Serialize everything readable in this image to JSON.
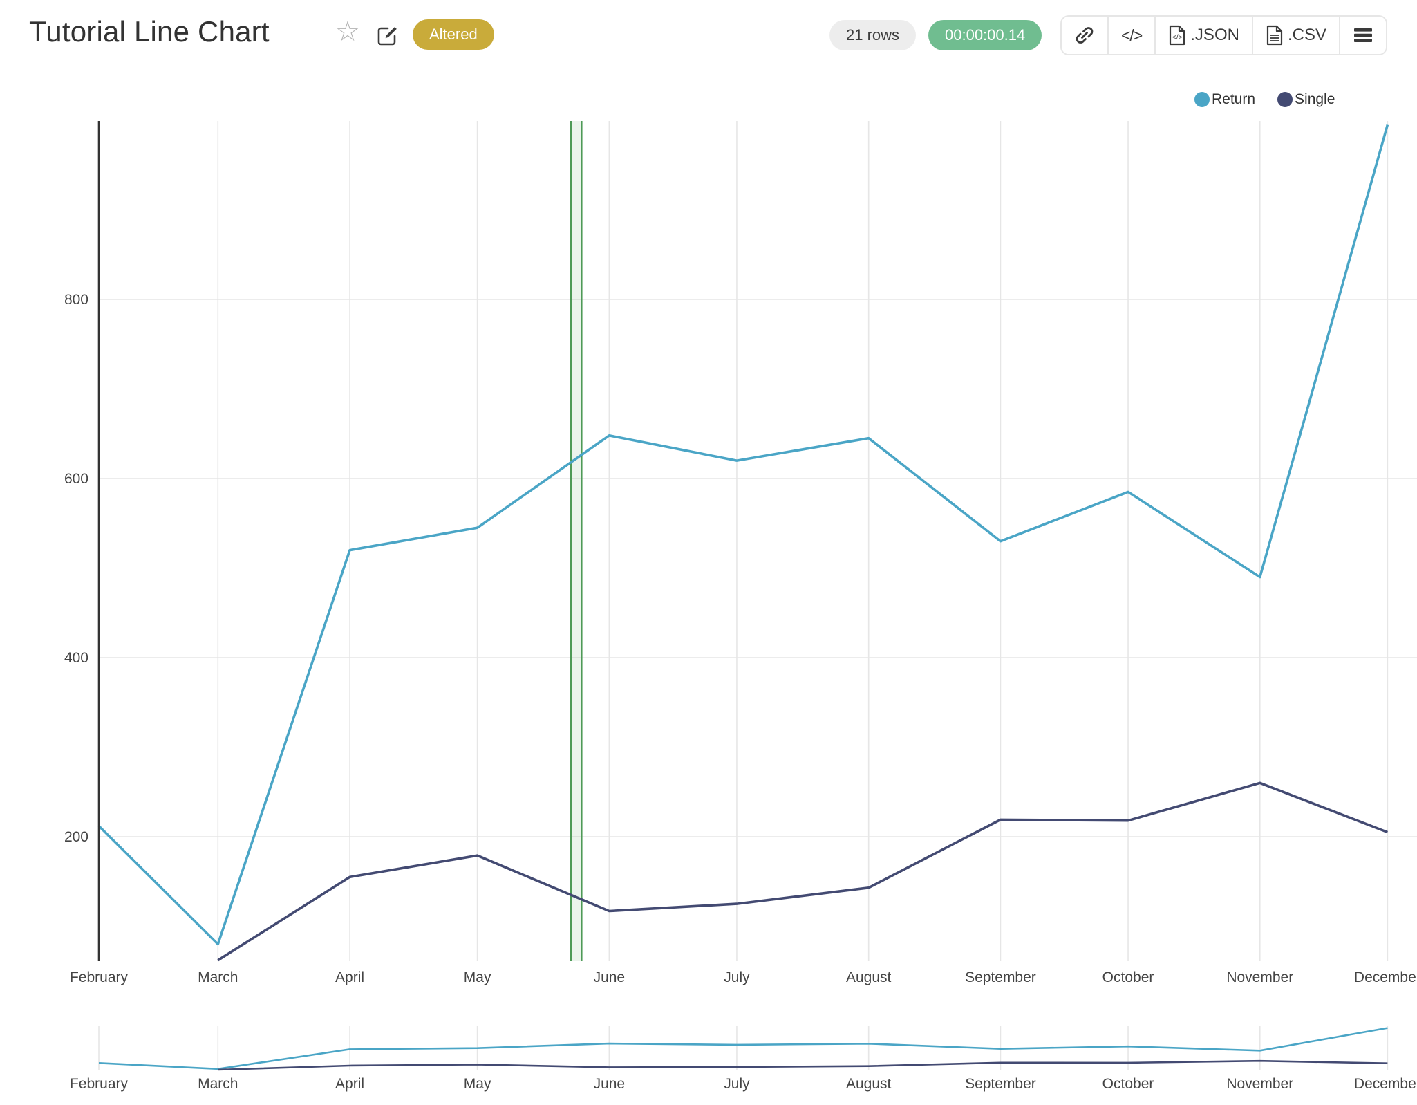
{
  "header": {
    "title": "Tutorial Line Chart",
    "badge": "Altered",
    "rows_label": "21 rows",
    "runtime_label": "00:00:00.14",
    "export_json_label": ".JSON",
    "export_csv_label": ".CSV"
  },
  "colors": {
    "accent_teal": "#4aa5c6",
    "accent_navy": "#434a72",
    "badge_gold": "#c9ab3a",
    "timer_green": "#70bd90",
    "grid": "#e6e6e6",
    "axis": "#333333",
    "tick_text": "#444444"
  },
  "chart_data": {
    "type": "line",
    "title": "Tutorial Line Chart",
    "x_categories": [
      "February",
      "March",
      "April",
      "May",
      "June",
      "July",
      "August",
      "September",
      "October",
      "November",
      "December"
    ],
    "month_day_offsets": [
      0,
      28,
      59,
      89,
      120,
      150,
      181,
      212,
      242,
      273,
      303
    ],
    "series": [
      {
        "name": "Return",
        "color": "#4aa5c6",
        "start_index": 0,
        "values": [
          212,
          80,
          520,
          545,
          648,
          620,
          645,
          530,
          585,
          490,
          995
        ]
      },
      {
        "name": "Single",
        "color": "#434a72",
        "start_index": 1,
        "values": [
          62,
          155,
          179,
          117,
          125,
          143,
          219,
          218,
          260,
          205
        ]
      }
    ],
    "xlabel": "",
    "ylabel": "",
    "yticks": [
      200,
      400,
      600,
      800
    ],
    "ylim": [
      60,
      1005
    ],
    "grid": true,
    "legend_position": "top-right",
    "annotation_band": {
      "start_day": 111,
      "end_day": 113.5,
      "fill": "rgba(103,168,107,0.13)",
      "border_color": "#4e9a57"
    },
    "range_slider": true
  }
}
